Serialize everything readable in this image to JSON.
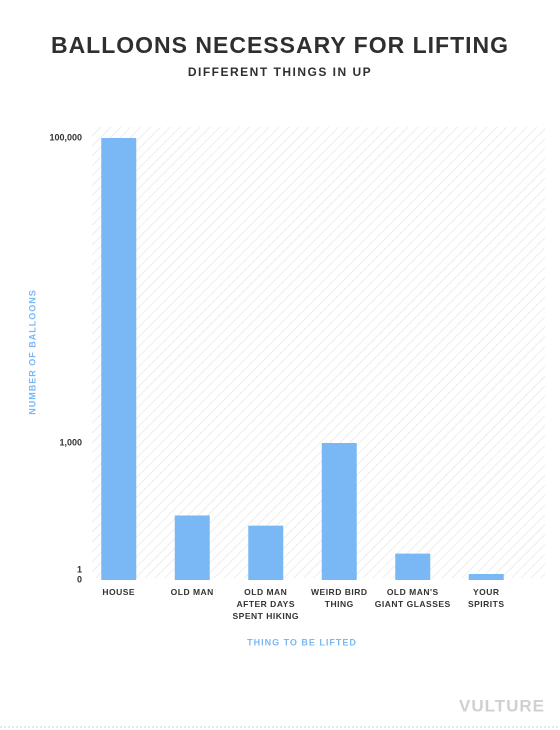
{
  "chart_data": {
    "type": "bar",
    "title": "BALLOONS NECESSARY FOR LIFTING",
    "subtitle": "DIFFERENT THINGS IN UP",
    "y_label": "NUMBER OF BALLOONS",
    "x_label": "THING TO BE LIFTED",
    "source": "VULTURE",
    "categories": [
      "HOUSE",
      "OLD MAN",
      "OLD MAN\nAFTER DAYS\nSPENT HIKING",
      "WEIRD BIRD\nTHING",
      "OLD MAN'S\nGIANT GLASSES",
      "YOUR\nSPIRITS"
    ],
    "values": [
      100000,
      430,
      350,
      1000,
      130,
      0.6
    ],
    "color": "#7ab8f5",
    "ylim": [
      0,
      100000
    ],
    "yticks": [
      0,
      1,
      {
        "value": 1000,
        "label": "1,000"
      },
      {
        "value": 100000,
        "label": "100,000"
      }
    ],
    "y_scale": "piecewise"
  }
}
